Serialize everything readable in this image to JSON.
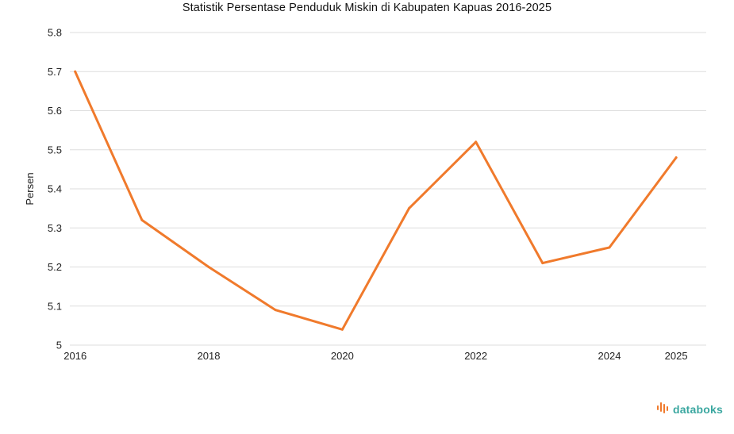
{
  "chart_data": {
    "type": "line",
    "title": "Statistik Persentase Penduduk Miskin di Kabupaten Kapuas 2016-2025",
    "xlabel": "",
    "ylabel": "Persen",
    "x": [
      2016,
      2017,
      2018,
      2019,
      2020,
      2021,
      2022,
      2023,
      2024,
      2025
    ],
    "x_tick_labels": [
      "2016",
      "2018",
      "2020",
      "2022",
      "2024",
      "2025"
    ],
    "y_tick_labels": [
      "5",
      "5.1",
      "5.2",
      "5.3",
      "5.4",
      "5.5",
      "5.6",
      "5.7",
      "5.8"
    ],
    "ylim": [
      5,
      5.8
    ],
    "grid": true,
    "series": [
      {
        "name": "Persen",
        "values": [
          5.7,
          5.32,
          5.2,
          5.09,
          5.04,
          5.35,
          5.52,
          5.21,
          5.25,
          5.48
        ],
        "color": "#f07a2c"
      }
    ]
  },
  "branding": {
    "name": "databoks",
    "color": "#3aa7a0",
    "icon_color": "#f07a2c"
  }
}
